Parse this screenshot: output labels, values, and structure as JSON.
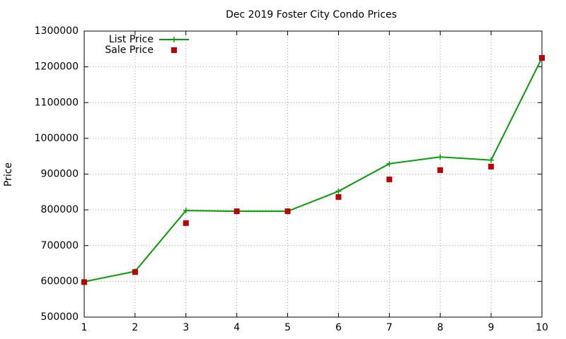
{
  "chart_data": {
    "type": "line",
    "title": "Dec 2019 Foster City Condo Prices",
    "y_label": "Price",
    "x": [
      1,
      2,
      3,
      4,
      5,
      6,
      7,
      8,
      9,
      10
    ],
    "series": [
      {
        "name": "List Price",
        "color": "#00a000",
        "mode": "linespoints",
        "values": [
          599000,
          628000,
          798000,
          796000,
          796000,
          852000,
          929000,
          948000,
          939000,
          1225000
        ]
      },
      {
        "name": "Sale Price",
        "color": "#c00000",
        "mode": "points",
        "values": [
          598000,
          626000,
          763000,
          796000,
          796000,
          836000,
          885000,
          911000,
          921000,
          1225000
        ]
      }
    ],
    "xlim": [
      1,
      10
    ],
    "xticks": [
      1,
      2,
      3,
      4,
      5,
      6,
      7,
      8,
      9,
      10
    ],
    "ylim": [
      500000,
      1300000
    ],
    "yticks": [
      500000,
      600000,
      700000,
      800000,
      900000,
      1000000,
      1100000,
      1200000,
      1300000
    ],
    "grid": true,
    "legend": "top-left"
  }
}
